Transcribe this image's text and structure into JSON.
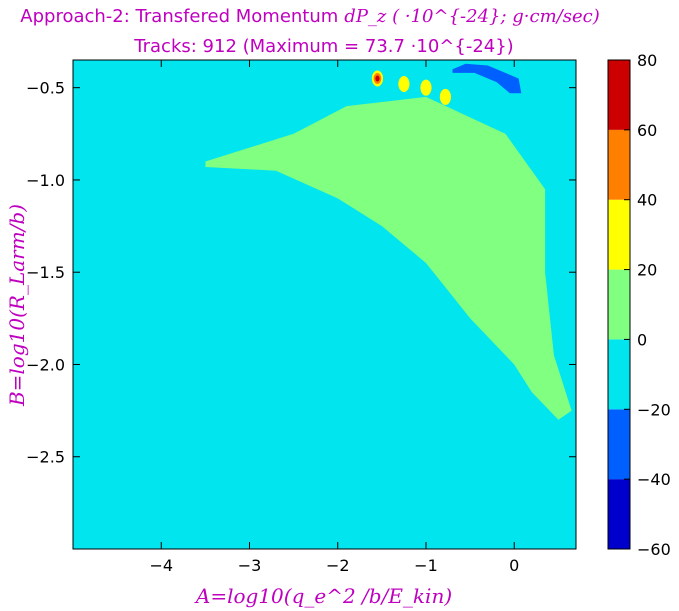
{
  "chart_data": {
    "type": "heatmap",
    "title": "Approach-2: Transfered Momentum dP_z (·10^{-24}; g·cm/sec)",
    "title_lines": [
      "Approach-2: Transfered Momentum",
      "Tracks: 912 (Maximum =  73.7 ·10^{-24})"
    ],
    "title_math": "dP_z ( ·10^{-24}; g·cm/sec)",
    "xlabel": "A=log10(q_e^2 /b/E_kin)",
    "ylabel": "B=log10(R_Larm/b)",
    "xlim": [
      -5.0,
      0.7
    ],
    "ylim": [
      -3.0,
      -0.35
    ],
    "x_ticks": [
      -4,
      -3,
      -2,
      -1,
      0
    ],
    "x_tick_labels": [
      "−4",
      "−3",
      "−2",
      "−1",
      "0"
    ],
    "y_ticks": [
      -0.5,
      -1.0,
      -1.5,
      -2.0,
      -2.5
    ],
    "y_tick_labels": [
      "−0.5",
      "−1.0",
      "−1.5",
      "−2.0",
      "−2.5"
    ],
    "colorbar": {
      "levels": [
        -60,
        -40,
        -20,
        0,
        20,
        40,
        60,
        80
      ],
      "tick_labels": [
        "−60",
        "−40",
        "−20",
        "0",
        "20",
        "40",
        "60",
        "80"
      ],
      "colors": [
        "#0000cc",
        "#0060ff",
        "#00e5ee",
        "#80ff80",
        "#ffff00",
        "#ff8000",
        "#cc0000"
      ]
    },
    "background_level_range": [
      -20,
      0
    ],
    "regions": [
      {
        "range": [
          0,
          20
        ],
        "description": "triangular band of positive values",
        "vertices": [
          [
            -3.5,
            -0.9
          ],
          [
            -2.5,
            -0.75
          ],
          [
            -1.9,
            -0.6
          ],
          [
            -1.0,
            -0.55
          ],
          [
            -0.1,
            -0.75
          ],
          [
            0.35,
            -1.05
          ],
          [
            0.35,
            -1.5
          ],
          [
            0.45,
            -1.95
          ],
          [
            0.65,
            -2.25
          ],
          [
            0.5,
            -2.3
          ],
          [
            0.2,
            -2.15
          ],
          [
            0.0,
            -2.0
          ],
          [
            -0.5,
            -1.75
          ],
          [
            -1.0,
            -1.45
          ],
          [
            -1.5,
            -1.25
          ],
          [
            -2.0,
            -1.1
          ],
          [
            -2.7,
            -0.95
          ],
          [
            -3.5,
            -0.93
          ]
        ]
      },
      {
        "range": [
          -40,
          -20
        ],
        "description": "negative patch near top",
        "vertices": [
          [
            -0.7,
            -0.4
          ],
          [
            -0.55,
            -0.37
          ],
          [
            -0.3,
            -0.38
          ],
          [
            -0.1,
            -0.42
          ],
          [
            0.05,
            -0.45
          ],
          [
            0.08,
            -0.53
          ],
          [
            -0.05,
            -0.53
          ],
          [
            -0.2,
            -0.47
          ],
          [
            -0.45,
            -0.42
          ],
          [
            -0.7,
            -0.42
          ]
        ]
      }
    ],
    "hotspots": [
      {
        "x": -1.55,
        "y": -0.45,
        "peak_level": [
          60,
          80
        ]
      },
      {
        "x": -1.25,
        "y": -0.48,
        "peak_level": [
          20,
          40
        ]
      },
      {
        "x": -1.0,
        "y": -0.5,
        "peak_level": [
          20,
          40
        ]
      },
      {
        "x": -0.78,
        "y": -0.55,
        "peak_level": [
          20,
          40
        ]
      }
    ],
    "grid": false,
    "tracks": 912,
    "maximum": 73.7
  }
}
